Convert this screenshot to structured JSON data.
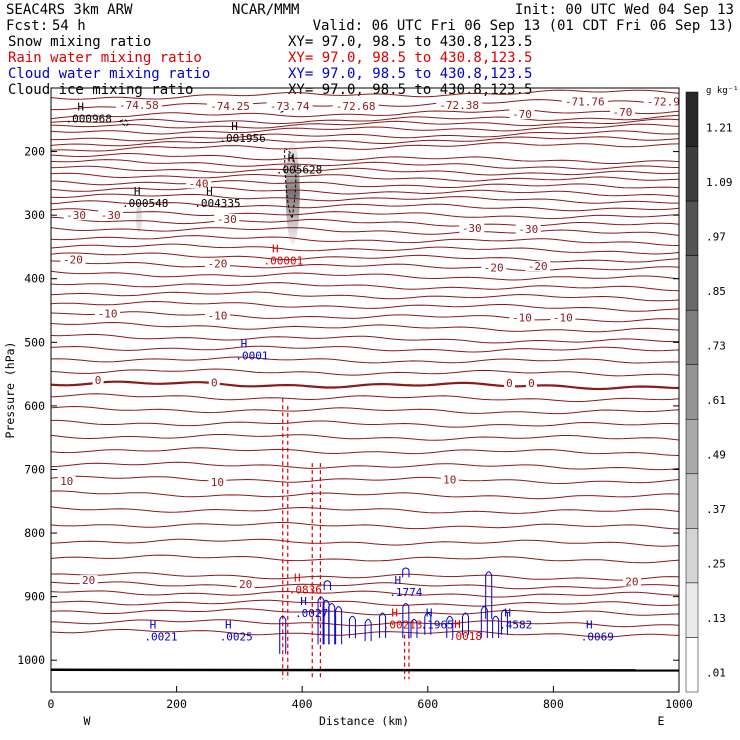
{
  "header": {
    "model": "SEAC4RS  3km ARW",
    "center": "NCAR/MMM",
    "init": "Init: 00 UTC Wed 04 Sep 13",
    "fcst_label": "Fcst:",
    "fcst_value": "54 h",
    "valid": "Valid: 06 UTC Fri 06 Sep 13 (01 CDT Fri 06 Sep 13)"
  },
  "fields": [
    {
      "name": "Snow mixing ratio",
      "xy": "XY=  97.0, 98.5 to 430.8,123.5",
      "color": "#000000"
    },
    {
      "name": "Rain water mixing ratio",
      "xy": "XY=  97.0, 98.5 to 430.8,123.5",
      "color": "#dd0000"
    },
    {
      "name": "Cloud water mixing ratio",
      "xy": "XY=  97.0, 98.5 to 430.8,123.5",
      "color": "#0000cc"
    },
    {
      "name": "Cloud ice mixing ratio",
      "xy": "XY=  97.0, 98.5 to 430.8,123.5",
      "color": "#000000"
    }
  ],
  "chart_data": {
    "type": "cross-section contour",
    "xlabel": "Distance (km)",
    "ylabel": "Pressure (hPa)",
    "xlim": [
      0,
      1000
    ],
    "ylim": [
      1050,
      100
    ],
    "x_ticks": [
      0,
      200,
      400,
      600,
      800,
      1000
    ],
    "y_ticks": [
      200,
      300,
      400,
      500,
      600,
      700,
      800,
      900,
      1000
    ],
    "x_end_labels": {
      "left": "W",
      "right": "E"
    },
    "colorbar": {
      "unit": "g kg⁻¹",
      "labels": [
        "1.21",
        "1.09",
        ".97",
        ".85",
        ".73",
        ".61",
        ".49",
        ".37",
        ".25",
        ".13",
        ".01"
      ]
    },
    "isotherm_labels": [
      {
        "value": "-74.58",
        "x": 140,
        "p": 127
      },
      {
        "value": "-74.25",
        "x": 285,
        "p": 128
      },
      {
        "value": "-73.74",
        "x": 380,
        "p": 128
      },
      {
        "value": "-72.68",
        "x": 485,
        "p": 128
      },
      {
        "value": "-72.38",
        "x": 650,
        "p": 127
      },
      {
        "value": "-71.76",
        "x": 850,
        "p": 121
      },
      {
        "value": "-72.9",
        "x": 975,
        "p": 121
      },
      {
        "value": "-70",
        "x": 750,
        "p": 141
      },
      {
        "value": "-70",
        "x": 910,
        "p": 138
      },
      {
        "value": "-40",
        "x": 235,
        "p": 250
      },
      {
        "value": "-30",
        "x": 40,
        "p": 300
      },
      {
        "value": "-30",
        "x": 95,
        "p": 300
      },
      {
        "value": "-30",
        "x": 280,
        "p": 306
      },
      {
        "value": "-30",
        "x": 670,
        "p": 320
      },
      {
        "value": "-30",
        "x": 760,
        "p": 322
      },
      {
        "value": "-20",
        "x": 35,
        "p": 370
      },
      {
        "value": "-20",
        "x": 265,
        "p": 376
      },
      {
        "value": "-20",
        "x": 705,
        "p": 382
      },
      {
        "value": "-20",
        "x": 775,
        "p": 380
      },
      {
        "value": "-10",
        "x": 90,
        "p": 455
      },
      {
        "value": "-10",
        "x": 265,
        "p": 458
      },
      {
        "value": "-10",
        "x": 750,
        "p": 461
      },
      {
        "value": "-10",
        "x": 815,
        "p": 461
      },
      {
        "value": "0",
        "x": 75,
        "p": 559
      },
      {
        "value": "0",
        "x": 260,
        "p": 563
      },
      {
        "value": "0",
        "x": 730,
        "p": 564
      },
      {
        "value": "0",
        "x": 765,
        "p": 564
      },
      {
        "value": "10",
        "x": 25,
        "p": 718
      },
      {
        "value": "10",
        "x": 265,
        "p": 720
      },
      {
        "value": "10",
        "x": 635,
        "p": 716
      },
      {
        "value": "20",
        "x": 60,
        "p": 874
      },
      {
        "value": "20",
        "x": 310,
        "p": 880
      },
      {
        "value": "20",
        "x": 925,
        "p": 876
      }
    ],
    "max_labels": [
      {
        "text": ".000968",
        "x": 60,
        "p": 148,
        "color": "#000000"
      },
      {
        "text": ".001956",
        "x": 305,
        "p": 179,
        "color": "#000000"
      },
      {
        "text": ".005628",
        "x": 395,
        "p": 228,
        "color": "#000000"
      },
      {
        "text": ".000548",
        "x": 150,
        "p": 281,
        "color": "#000000"
      },
      {
        "text": ".004335",
        "x": 265,
        "p": 281,
        "color": "#000000"
      },
      {
        "text": ".00001",
        "x": 370,
        "p": 371,
        "color": "#dd0000"
      },
      {
        "text": ".0001",
        "x": 320,
        "p": 521,
        "color": "#0000cc"
      },
      {
        "text": ".0836",
        "x": 405,
        "p": 889,
        "color": "#dd0000"
      },
      {
        "text": ".1774",
        "x": 565,
        "p": 893,
        "color": "#0000cc"
      },
      {
        "text": ".0021",
        "x": 175,
        "p": 963,
        "color": "#0000cc"
      },
      {
        "text": ".0025",
        "x": 295,
        "p": 963,
        "color": "#0000cc"
      },
      {
        "text": ".0027",
        "x": 415,
        "p": 926,
        "color": "#0000cc"
      },
      {
        "text": ".00213",
        "x": 560,
        "p": 944,
        "color": "#dd0000"
      },
      {
        "text": ".1965",
        "x": 615,
        "p": 944,
        "color": "#0000cc"
      },
      {
        "text": ".0018",
        "x": 660,
        "p": 962,
        "color": "#dd0000"
      },
      {
        "text": ".4582",
        "x": 740,
        "p": 944,
        "color": "#0000cc"
      },
      {
        "text": ".0069",
        "x": 870,
        "p": 963,
        "color": "#0000cc"
      }
    ]
  }
}
